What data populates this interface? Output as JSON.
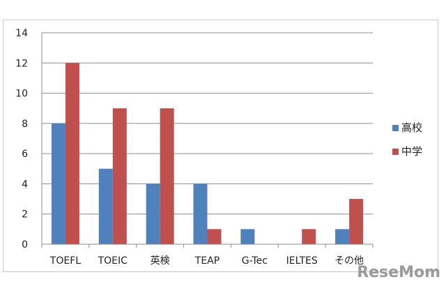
{
  "chart_data": {
    "type": "bar",
    "title": "",
    "xlabel": "",
    "ylabel": "",
    "categories": [
      "TOEFL",
      "TOEIC",
      "英検",
      "TEAP",
      "G-Tec",
      "IELTES",
      "その他"
    ],
    "series": [
      {
        "name": "高校",
        "values": [
          8,
          5,
          4,
          4,
          1,
          0,
          1
        ],
        "color": "#4f81bd"
      },
      {
        "name": "中学",
        "values": [
          12,
          9,
          9,
          1,
          0,
          1,
          3
        ],
        "color": "#c0504d"
      }
    ],
    "ylim": [
      0,
      14
    ],
    "yticks": [
      0,
      2,
      4,
      6,
      8,
      10,
      12,
      14
    ],
    "grid": true,
    "legend": "right"
  },
  "watermark": "ReseMom"
}
